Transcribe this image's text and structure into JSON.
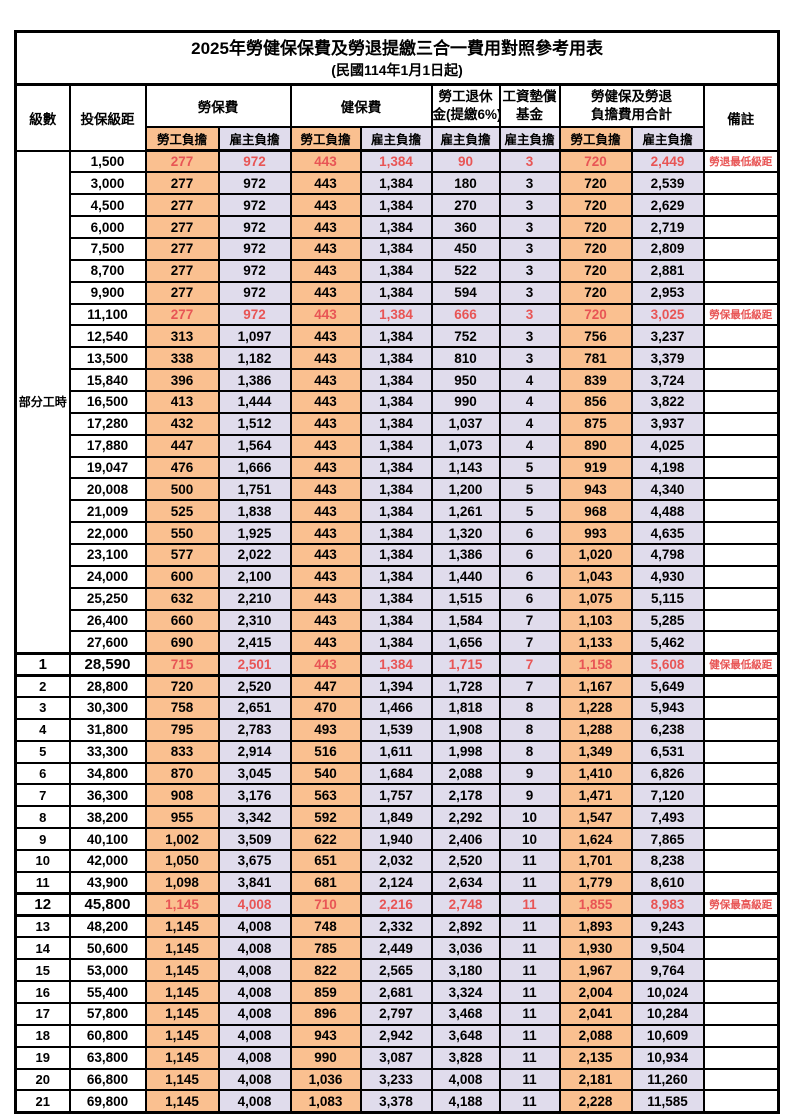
{
  "title": "2025年勞健保保費及勞退提繳三合一費用對照參考用表",
  "subtitle": "(民國114年1月1日起)",
  "header": {
    "level": "級數",
    "bracket": "投保級距",
    "labor_ins": "勞保費",
    "health_ins": "健保費",
    "pension_line1": "勞工退休",
    "pension_line2": "金(提繳6%)",
    "wage_fund_line1": "工資墊償",
    "wage_fund_line2": "基金",
    "total_line1": "勞健保及勞退",
    "total_line2": "負擔費用合計",
    "remark": "備註",
    "employee": "勞工負擔",
    "employer": "雇主負擔"
  },
  "part_time_label": "部分工時",
  "part_time_rowspan": 23,
  "colors": {
    "employee_bg": "#fac090",
    "employer_bg": "#e0dcec",
    "highlight_text": "#e85555",
    "border": "#000000"
  },
  "rows": [
    {
      "level": "",
      "bracket": "1,500",
      "v": [
        "277",
        "972",
        "443",
        "1,384",
        "90",
        "3",
        "720",
        "2,449"
      ],
      "remark": "勞退最低級距",
      "red": true,
      "bold": false
    },
    {
      "level": "",
      "bracket": "3,000",
      "v": [
        "277",
        "972",
        "443",
        "1,384",
        "180",
        "3",
        "720",
        "2,539"
      ],
      "remark": "",
      "red": false,
      "bold": false
    },
    {
      "level": "",
      "bracket": "4,500",
      "v": [
        "277",
        "972",
        "443",
        "1,384",
        "270",
        "3",
        "720",
        "2,629"
      ],
      "remark": "",
      "red": false,
      "bold": false
    },
    {
      "level": "",
      "bracket": "6,000",
      "v": [
        "277",
        "972",
        "443",
        "1,384",
        "360",
        "3",
        "720",
        "2,719"
      ],
      "remark": "",
      "red": false,
      "bold": false
    },
    {
      "level": "",
      "bracket": "7,500",
      "v": [
        "277",
        "972",
        "443",
        "1,384",
        "450",
        "3",
        "720",
        "2,809"
      ],
      "remark": "",
      "red": false,
      "bold": false
    },
    {
      "level": "",
      "bracket": "8,700",
      "v": [
        "277",
        "972",
        "443",
        "1,384",
        "522",
        "3",
        "720",
        "2,881"
      ],
      "remark": "",
      "red": false,
      "bold": false
    },
    {
      "level": "",
      "bracket": "9,900",
      "v": [
        "277",
        "972",
        "443",
        "1,384",
        "594",
        "3",
        "720",
        "2,953"
      ],
      "remark": "",
      "red": false,
      "bold": false
    },
    {
      "level": "",
      "bracket": "11,100",
      "v": [
        "277",
        "972",
        "443",
        "1,384",
        "666",
        "3",
        "720",
        "3,025"
      ],
      "remark": "勞保最低級距",
      "red": true,
      "bold": false
    },
    {
      "level": "",
      "bracket": "12,540",
      "v": [
        "313",
        "1,097",
        "443",
        "1,384",
        "752",
        "3",
        "756",
        "3,237"
      ],
      "remark": "",
      "red": false,
      "bold": false
    },
    {
      "level": "",
      "bracket": "13,500",
      "v": [
        "338",
        "1,182",
        "443",
        "1,384",
        "810",
        "3",
        "781",
        "3,379"
      ],
      "remark": "",
      "red": false,
      "bold": false
    },
    {
      "level": "",
      "bracket": "15,840",
      "v": [
        "396",
        "1,386",
        "443",
        "1,384",
        "950",
        "4",
        "839",
        "3,724"
      ],
      "remark": "",
      "red": false,
      "bold": false
    },
    {
      "level": "",
      "bracket": "16,500",
      "v": [
        "413",
        "1,444",
        "443",
        "1,384",
        "990",
        "4",
        "856",
        "3,822"
      ],
      "remark": "",
      "red": false,
      "bold": false
    },
    {
      "level": "",
      "bracket": "17,280",
      "v": [
        "432",
        "1,512",
        "443",
        "1,384",
        "1,037",
        "4",
        "875",
        "3,937"
      ],
      "remark": "",
      "red": false,
      "bold": false
    },
    {
      "level": "",
      "bracket": "17,880",
      "v": [
        "447",
        "1,564",
        "443",
        "1,384",
        "1,073",
        "4",
        "890",
        "4,025"
      ],
      "remark": "",
      "red": false,
      "bold": false
    },
    {
      "level": "",
      "bracket": "19,047",
      "v": [
        "476",
        "1,666",
        "443",
        "1,384",
        "1,143",
        "5",
        "919",
        "4,198"
      ],
      "remark": "",
      "red": false,
      "bold": false
    },
    {
      "level": "",
      "bracket": "20,008",
      "v": [
        "500",
        "1,751",
        "443",
        "1,384",
        "1,200",
        "5",
        "943",
        "4,340"
      ],
      "remark": "",
      "red": false,
      "bold": false
    },
    {
      "level": "",
      "bracket": "21,009",
      "v": [
        "525",
        "1,838",
        "443",
        "1,384",
        "1,261",
        "5",
        "968",
        "4,488"
      ],
      "remark": "",
      "red": false,
      "bold": false
    },
    {
      "level": "",
      "bracket": "22,000",
      "v": [
        "550",
        "1,925",
        "443",
        "1,384",
        "1,320",
        "6",
        "993",
        "4,635"
      ],
      "remark": "",
      "red": false,
      "bold": false
    },
    {
      "level": "",
      "bracket": "23,100",
      "v": [
        "577",
        "2,022",
        "443",
        "1,384",
        "1,386",
        "6",
        "1,020",
        "4,798"
      ],
      "remark": "",
      "red": false,
      "bold": false
    },
    {
      "level": "",
      "bracket": "24,000",
      "v": [
        "600",
        "2,100",
        "443",
        "1,384",
        "1,440",
        "6",
        "1,043",
        "4,930"
      ],
      "remark": "",
      "red": false,
      "bold": false
    },
    {
      "level": "",
      "bracket": "25,250",
      "v": [
        "632",
        "2,210",
        "443",
        "1,384",
        "1,515",
        "6",
        "1,075",
        "5,115"
      ],
      "remark": "",
      "red": false,
      "bold": false
    },
    {
      "level": "",
      "bracket": "26,400",
      "v": [
        "660",
        "2,310",
        "443",
        "1,384",
        "1,584",
        "7",
        "1,103",
        "5,285"
      ],
      "remark": "",
      "red": false,
      "bold": false
    },
    {
      "level": "",
      "bracket": "27,600",
      "v": [
        "690",
        "2,415",
        "443",
        "1,384",
        "1,656",
        "7",
        "1,133",
        "5,462"
      ],
      "remark": "",
      "red": false,
      "bold": false
    },
    {
      "level": "1",
      "bracket": "28,590",
      "v": [
        "715",
        "2,501",
        "443",
        "1,384",
        "1,715",
        "7",
        "1,158",
        "5,608"
      ],
      "remark": "健保最低級距",
      "red": true,
      "bold": true
    },
    {
      "level": "2",
      "bracket": "28,800",
      "v": [
        "720",
        "2,520",
        "447",
        "1,394",
        "1,728",
        "7",
        "1,167",
        "5,649"
      ],
      "remark": "",
      "red": false,
      "bold": false
    },
    {
      "level": "3",
      "bracket": "30,300",
      "v": [
        "758",
        "2,651",
        "470",
        "1,466",
        "1,818",
        "8",
        "1,228",
        "5,943"
      ],
      "remark": "",
      "red": false,
      "bold": false
    },
    {
      "level": "4",
      "bracket": "31,800",
      "v": [
        "795",
        "2,783",
        "493",
        "1,539",
        "1,908",
        "8",
        "1,288",
        "6,238"
      ],
      "remark": "",
      "red": false,
      "bold": false
    },
    {
      "level": "5",
      "bracket": "33,300",
      "v": [
        "833",
        "2,914",
        "516",
        "1,611",
        "1,998",
        "8",
        "1,349",
        "6,531"
      ],
      "remark": "",
      "red": false,
      "bold": false
    },
    {
      "level": "6",
      "bracket": "34,800",
      "v": [
        "870",
        "3,045",
        "540",
        "1,684",
        "2,088",
        "9",
        "1,410",
        "6,826"
      ],
      "remark": "",
      "red": false,
      "bold": false
    },
    {
      "level": "7",
      "bracket": "36,300",
      "v": [
        "908",
        "3,176",
        "563",
        "1,757",
        "2,178",
        "9",
        "1,471",
        "7,120"
      ],
      "remark": "",
      "red": false,
      "bold": false
    },
    {
      "level": "8",
      "bracket": "38,200",
      "v": [
        "955",
        "3,342",
        "592",
        "1,849",
        "2,292",
        "10",
        "1,547",
        "7,493"
      ],
      "remark": "",
      "red": false,
      "bold": false
    },
    {
      "level": "9",
      "bracket": "40,100",
      "v": [
        "1,002",
        "3,509",
        "622",
        "1,940",
        "2,406",
        "10",
        "1,624",
        "7,865"
      ],
      "remark": "",
      "red": false,
      "bold": false
    },
    {
      "level": "10",
      "bracket": "42,000",
      "v": [
        "1,050",
        "3,675",
        "651",
        "2,032",
        "2,520",
        "11",
        "1,701",
        "8,238"
      ],
      "remark": "",
      "red": false,
      "bold": false
    },
    {
      "level": "11",
      "bracket": "43,900",
      "v": [
        "1,098",
        "3,841",
        "681",
        "2,124",
        "2,634",
        "11",
        "1,779",
        "8,610"
      ],
      "remark": "",
      "red": false,
      "bold": false
    },
    {
      "level": "12",
      "bracket": "45,800",
      "v": [
        "1,145",
        "4,008",
        "710",
        "2,216",
        "2,748",
        "11",
        "1,855",
        "8,983"
      ],
      "remark": "勞保最高級距",
      "red": true,
      "bold": true
    },
    {
      "level": "13",
      "bracket": "48,200",
      "v": [
        "1,145",
        "4,008",
        "748",
        "2,332",
        "2,892",
        "11",
        "1,893",
        "9,243"
      ],
      "remark": "",
      "red": false,
      "bold": false
    },
    {
      "level": "14",
      "bracket": "50,600",
      "v": [
        "1,145",
        "4,008",
        "785",
        "2,449",
        "3,036",
        "11",
        "1,930",
        "9,504"
      ],
      "remark": "",
      "red": false,
      "bold": false
    },
    {
      "level": "15",
      "bracket": "53,000",
      "v": [
        "1,145",
        "4,008",
        "822",
        "2,565",
        "3,180",
        "11",
        "1,967",
        "9,764"
      ],
      "remark": "",
      "red": false,
      "bold": false
    },
    {
      "level": "16",
      "bracket": "55,400",
      "v": [
        "1,145",
        "4,008",
        "859",
        "2,681",
        "3,324",
        "11",
        "2,004",
        "10,024"
      ],
      "remark": "",
      "red": false,
      "bold": false
    },
    {
      "level": "17",
      "bracket": "57,800",
      "v": [
        "1,145",
        "4,008",
        "896",
        "2,797",
        "3,468",
        "11",
        "2,041",
        "10,284"
      ],
      "remark": "",
      "red": false,
      "bold": false
    },
    {
      "level": "18",
      "bracket": "60,800",
      "v": [
        "1,145",
        "4,008",
        "943",
        "2,942",
        "3,648",
        "11",
        "2,088",
        "10,609"
      ],
      "remark": "",
      "red": false,
      "bold": false
    },
    {
      "level": "19",
      "bracket": "63,800",
      "v": [
        "1,145",
        "4,008",
        "990",
        "3,087",
        "3,828",
        "11",
        "2,135",
        "10,934"
      ],
      "remark": "",
      "red": false,
      "bold": false
    },
    {
      "level": "20",
      "bracket": "66,800",
      "v": [
        "1,145",
        "4,008",
        "1,036",
        "3,233",
        "4,008",
        "11",
        "2,181",
        "11,260"
      ],
      "remark": "",
      "red": false,
      "bold": false
    },
    {
      "level": "21",
      "bracket": "69,800",
      "v": [
        "1,145",
        "4,008",
        "1,083",
        "3,378",
        "4,188",
        "11",
        "2,228",
        "11,585"
      ],
      "remark": "",
      "red": false,
      "bold": false
    }
  ]
}
